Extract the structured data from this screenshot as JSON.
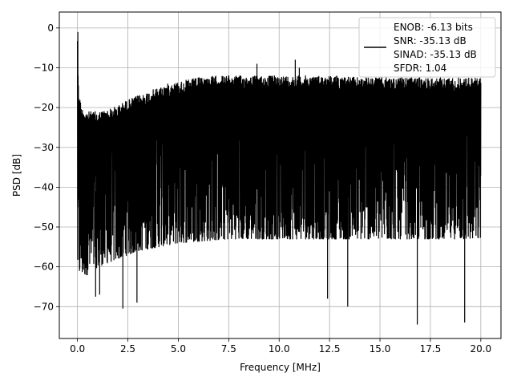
{
  "chart_data": {
    "type": "line",
    "title": "",
    "xlabel": "Frequency [MHz]",
    "ylabel": "PSD [dB]",
    "xlim": [
      -0.9,
      21.0
    ],
    "ylim": [
      -78.0,
      4.0
    ],
    "xticks": [
      0.0,
      2.5,
      5.0,
      7.5,
      10.0,
      12.5,
      15.0,
      17.5,
      20.0
    ],
    "xtick_labels": [
      "0.0",
      "2.5",
      "5.0",
      "7.5",
      "10.0",
      "12.5",
      "15.0",
      "17.5",
      "20.0"
    ],
    "yticks": [
      0,
      -10,
      -20,
      -30,
      -40,
      -50,
      -60,
      -70
    ],
    "ytick_labels": [
      "0",
      "−10",
      "−20",
      "−30",
      "−40",
      "−50",
      "−60",
      "−70"
    ],
    "grid": true,
    "legend_position": "top-right",
    "series": [
      {
        "color": "#000000",
        "legend_lines": [
          "ENOB: -6.13 bits",
          "SNR: -35.13 dB",
          "SINAD: -35.13 dB",
          "SFDR: 1.04"
        ],
        "upper_envelope": {
          "x": [
            0.0,
            0.05,
            0.2,
            0.5,
            1.0,
            1.5,
            2.0,
            2.5,
            3.0,
            3.5,
            4.0,
            4.5,
            5.0,
            5.5,
            6.0,
            7.0,
            8.0,
            9.0,
            10.0,
            11.0,
            12.0,
            13.0,
            14.0,
            15.0,
            16.0,
            17.0,
            18.0,
            19.0,
            20.0
          ],
          "y": [
            -1.0,
            -15.0,
            -20.0,
            -21.0,
            -21.0,
            -20.5,
            -19.5,
            -18.0,
            -17.0,
            -16.0,
            -15.0,
            -14.0,
            -13.5,
            -13.0,
            -12.5,
            -12.0,
            -12.0,
            -12.0,
            -12.0,
            -12.0,
            -12.0,
            -12.0,
            -12.5,
            -12.5,
            -12.5,
            -12.5,
            -12.5,
            -12.5,
            -12.5
          ]
        },
        "lower_envelope": {
          "x": [
            0.0,
            0.5,
            1.0,
            2.0,
            3.0,
            5.0,
            7.5,
            10.0,
            12.5,
            15.0,
            17.5,
            20.0
          ],
          "y": [
            -62.0,
            -62.0,
            -60.0,
            -58.0,
            -56.0,
            -54.0,
            -53.0,
            -53.0,
            -53.0,
            -53.0,
            -53.0,
            -53.0
          ]
        },
        "local_minima": [
          {
            "x": 0.9,
            "y": -67.5
          },
          {
            "x": 1.1,
            "y": -67.0
          },
          {
            "x": 2.25,
            "y": -70.5
          },
          {
            "x": 2.95,
            "y": -69.0
          },
          {
            "x": 12.4,
            "y": -68.0
          },
          {
            "x": 13.4,
            "y": -70.0
          },
          {
            "x": 16.85,
            "y": -74.5
          },
          {
            "x": 19.2,
            "y": -74.0
          }
        ],
        "local_maxima": [
          {
            "x": 0.02,
            "y": -1.0
          },
          {
            "x": 8.9,
            "y": -9.0
          },
          {
            "x": 11.0,
            "y": -10.0
          },
          {
            "x": 10.8,
            "y": -8.0
          }
        ]
      }
    ]
  }
}
